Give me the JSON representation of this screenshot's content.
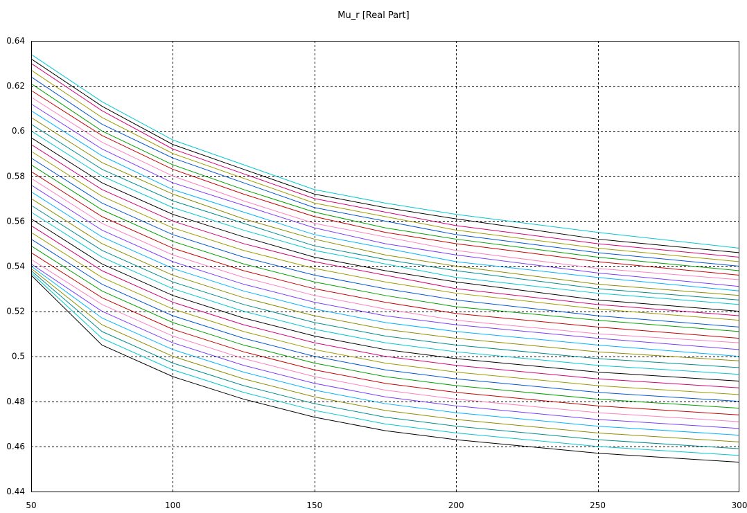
{
  "chart_data": {
    "type": "line",
    "title": "Mu_r [Real Part]",
    "xlabel": "",
    "ylabel": "",
    "xlim": [
      50,
      300
    ],
    "ylim": [
      0.44,
      0.64
    ],
    "x_ticks": [
      50,
      100,
      150,
      200,
      250,
      300
    ],
    "y_ticks": [
      0.44,
      0.46,
      0.48,
      0.5,
      0.52,
      0.54,
      0.56,
      0.58,
      0.6,
      0.62,
      0.64
    ],
    "x_tick_labels": [
      "50",
      "100",
      "150",
      "200",
      "250",
      "300"
    ],
    "y_tick_labels": [
      "0.44",
      "0.46",
      "0.48",
      "0.5",
      "0.52",
      "0.54",
      "0.56",
      "0.58",
      "0.6",
      "0.62",
      "0.64"
    ],
    "grid": true,
    "legend": "none",
    "x": [
      50,
      75,
      100,
      125,
      150,
      175,
      200,
      250,
      300
    ],
    "colors": [
      "#00c8d2",
      "#000000",
      "#d4007a",
      "#9b9b00",
      "#0055d4",
      "#00a000",
      "#c80000",
      "#ff7fbf",
      "#7a3cff",
      "#00b4ff",
      "#8c8c00",
      "#008c8c"
    ],
    "series": [
      {
        "values": [
          0.634,
          0.613,
          0.596,
          0.585,
          0.574,
          0.568,
          0.563,
          0.555,
          0.548
        ]
      },
      {
        "values": [
          0.632,
          0.611,
          0.594,
          0.583,
          0.572,
          0.566,
          0.561,
          0.552,
          0.546
        ]
      },
      {
        "values": [
          0.63,
          0.609,
          0.592,
          0.581,
          0.57,
          0.564,
          0.558,
          0.55,
          0.544
        ]
      },
      {
        "values": [
          0.627,
          0.606,
          0.59,
          0.579,
          0.568,
          0.562,
          0.556,
          0.548,
          0.542
        ]
      },
      {
        "values": [
          0.624,
          0.603,
          0.588,
          0.577,
          0.566,
          0.56,
          0.554,
          0.546,
          0.54
        ]
      },
      {
        "values": [
          0.621,
          0.6,
          0.585,
          0.574,
          0.564,
          0.557,
          0.552,
          0.544,
          0.538
        ]
      },
      {
        "values": [
          0.618,
          0.598,
          0.583,
          0.572,
          0.562,
          0.555,
          0.55,
          0.542,
          0.536
        ]
      },
      {
        "values": [
          0.615,
          0.595,
          0.58,
          0.569,
          0.559,
          0.553,
          0.547,
          0.539,
          0.534
        ]
      },
      {
        "values": [
          0.612,
          0.592,
          0.577,
          0.567,
          0.557,
          0.55,
          0.545,
          0.537,
          0.531
        ]
      },
      {
        "values": [
          0.609,
          0.589,
          0.574,
          0.564,
          0.554,
          0.548,
          0.542,
          0.535,
          0.529
        ]
      },
      {
        "values": [
          0.606,
          0.586,
          0.572,
          0.561,
          0.552,
          0.545,
          0.54,
          0.532,
          0.527
        ]
      },
      {
        "values": [
          0.603,
          0.583,
          0.569,
          0.559,
          0.549,
          0.543,
          0.538,
          0.53,
          0.525
        ]
      },
      {
        "values": [
          0.6,
          0.58,
          0.566,
          0.556,
          0.547,
          0.541,
          0.535,
          0.528,
          0.523
        ]
      },
      {
        "values": [
          0.597,
          0.577,
          0.563,
          0.553,
          0.544,
          0.538,
          0.533,
          0.525,
          0.52
        ]
      },
      {
        "values": [
          0.594,
          0.574,
          0.56,
          0.55,
          0.542,
          0.536,
          0.53,
          0.523,
          0.518
        ]
      },
      {
        "values": [
          0.591,
          0.571,
          0.557,
          0.547,
          0.539,
          0.533,
          0.528,
          0.521,
          0.516
        ]
      },
      {
        "values": [
          0.588,
          0.568,
          0.554,
          0.544,
          0.536,
          0.53,
          0.525,
          0.518,
          0.513
        ]
      },
      {
        "values": [
          0.585,
          0.565,
          0.551,
          0.541,
          0.533,
          0.527,
          0.522,
          0.516,
          0.511
        ]
      },
      {
        "values": [
          0.582,
          0.562,
          0.548,
          0.538,
          0.53,
          0.524,
          0.519,
          0.513,
          0.508
        ]
      },
      {
        "values": [
          0.579,
          0.559,
          0.545,
          0.535,
          0.527,
          0.521,
          0.516,
          0.51,
          0.506
        ]
      },
      {
        "values": [
          0.576,
          0.556,
          0.542,
          0.532,
          0.524,
          0.518,
          0.514,
          0.508,
          0.503
        ]
      },
      {
        "values": [
          0.573,
          0.553,
          0.539,
          0.529,
          0.521,
          0.515,
          0.511,
          0.505,
          0.5
        ]
      },
      {
        "values": [
          0.57,
          0.55,
          0.536,
          0.526,
          0.518,
          0.512,
          0.508,
          0.502,
          0.498
        ]
      },
      {
        "values": [
          0.567,
          0.547,
          0.533,
          0.523,
          0.515,
          0.509,
          0.505,
          0.499,
          0.495
        ]
      },
      {
        "values": [
          0.564,
          0.544,
          0.53,
          0.52,
          0.512,
          0.506,
          0.502,
          0.496,
          0.492
        ]
      },
      {
        "values": [
          0.561,
          0.541,
          0.527,
          0.517,
          0.509,
          0.503,
          0.499,
          0.493,
          0.489
        ]
      },
      {
        "values": [
          0.558,
          0.538,
          0.524,
          0.514,
          0.506,
          0.5,
          0.496,
          0.49,
          0.486
        ]
      },
      {
        "values": [
          0.555,
          0.535,
          0.521,
          0.511,
          0.503,
          0.497,
          0.493,
          0.487,
          0.483
        ]
      },
      {
        "values": [
          0.552,
          0.532,
          0.518,
          0.508,
          0.5,
          0.494,
          0.49,
          0.484,
          0.48
        ]
      },
      {
        "values": [
          0.549,
          0.529,
          0.515,
          0.505,
          0.497,
          0.491,
          0.487,
          0.481,
          0.477
        ]
      },
      {
        "values": [
          0.546,
          0.526,
          0.512,
          0.502,
          0.494,
          0.488,
          0.484,
          0.478,
          0.474
        ]
      },
      {
        "values": [
          0.543,
          0.523,
          0.509,
          0.499,
          0.491,
          0.485,
          0.481,
          0.475,
          0.471
        ]
      },
      {
        "values": [
          0.541,
          0.52,
          0.506,
          0.496,
          0.488,
          0.482,
          0.478,
          0.472,
          0.468
        ]
      },
      {
        "values": [
          0.54,
          0.517,
          0.503,
          0.493,
          0.485,
          0.479,
          0.475,
          0.469,
          0.465
        ]
      },
      {
        "values": [
          0.539,
          0.514,
          0.5,
          0.49,
          0.482,
          0.476,
          0.472,
          0.466,
          0.462
        ]
      },
      {
        "values": [
          0.538,
          0.511,
          0.497,
          0.487,
          0.479,
          0.473,
          0.469,
          0.463,
          0.459
        ]
      },
      {
        "values": [
          0.537,
          0.508,
          0.494,
          0.484,
          0.476,
          0.47,
          0.466,
          0.46,
          0.456
        ]
      },
      {
        "values": [
          0.536,
          0.505,
          0.491,
          0.481,
          0.473,
          0.467,
          0.463,
          0.457,
          0.453
        ]
      }
    ]
  }
}
